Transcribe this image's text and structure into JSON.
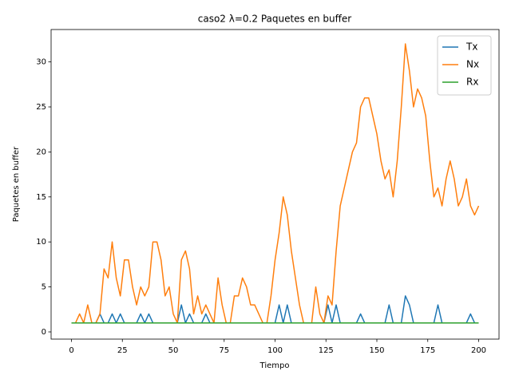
{
  "chart_data": {
    "type": "line",
    "title": "caso2 λ=0.2 Paquetes en buffer",
    "x_label": "Tiempo",
    "y_label": "Paquetes en buffer",
    "x": [
      0,
      2,
      4,
      6,
      8,
      10,
      12,
      14,
      16,
      18,
      20,
      22,
      24,
      26,
      28,
      30,
      32,
      34,
      36,
      38,
      40,
      42,
      44,
      46,
      48,
      50,
      52,
      54,
      56,
      58,
      60,
      62,
      64,
      66,
      68,
      70,
      72,
      74,
      76,
      78,
      80,
      82,
      84,
      86,
      88,
      90,
      92,
      94,
      96,
      98,
      100,
      102,
      104,
      106,
      108,
      110,
      112,
      114,
      116,
      118,
      120,
      122,
      124,
      126,
      128,
      130,
      132,
      134,
      136,
      138,
      140,
      142,
      144,
      146,
      148,
      150,
      152,
      154,
      156,
      158,
      160,
      162,
      164,
      166,
      168,
      170,
      172,
      174,
      176,
      178,
      180,
      182,
      184,
      186,
      188,
      190,
      192,
      194,
      196,
      198,
      200
    ],
    "series": [
      {
        "name": "Tx",
        "color": "#1f77b4",
        "values": [
          1,
          1,
          1,
          1,
          1,
          1,
          1,
          2,
          1,
          1,
          2,
          1,
          2,
          1,
          1,
          1,
          1,
          2,
          1,
          2,
          1,
          1,
          1,
          1,
          1,
          1,
          1,
          3,
          1,
          2,
          1,
          1,
          1,
          2,
          1,
          1,
          1,
          1,
          1,
          1,
          1,
          1,
          1,
          1,
          1,
          1,
          1,
          1,
          1,
          1,
          1,
          3,
          1,
          3,
          1,
          1,
          1,
          1,
          1,
          1,
          1,
          1,
          1,
          3,
          1,
          3,
          1,
          1,
          1,
          1,
          1,
          2,
          1,
          1,
          1,
          1,
          1,
          1,
          3,
          1,
          1,
          1,
          4,
          3,
          1,
          1,
          1,
          1,
          1,
          1,
          3,
          1,
          1,
          1,
          1,
          1,
          1,
          1,
          2,
          1,
          1
        ]
      },
      {
        "name": "Nx",
        "color": "#ff7f0e",
        "values": [
          1,
          1,
          2,
          1,
          3,
          1,
          1,
          2,
          7,
          6,
          10,
          6,
          4,
          8,
          8,
          5,
          3,
          5,
          4,
          5,
          10,
          10,
          8,
          4,
          5,
          2,
          1,
          8,
          9,
          7,
          2,
          4,
          2,
          3,
          2,
          1,
          6,
          3,
          1,
          1,
          4,
          4,
          6,
          5,
          3,
          3,
          2,
          1,
          1,
          4,
          8,
          11,
          15,
          13,
          9,
          6,
          3,
          1,
          1,
          1,
          5,
          2,
          1,
          4,
          3,
          9,
          14,
          16,
          18,
          20,
          21,
          25,
          26,
          26,
          24,
          22,
          19,
          17,
          18,
          15,
          19,
          25,
          32,
          29,
          25,
          27,
          26,
          24,
          19,
          15,
          16,
          14,
          17,
          19,
          17,
          14,
          15,
          17,
          14,
          13,
          14
        ]
      },
      {
        "name": "Rx",
        "color": "#2ca02c",
        "values": [
          1,
          1,
          1,
          1,
          1,
          1,
          1,
          1,
          1,
          1,
          1,
          1,
          1,
          1,
          1,
          1,
          1,
          1,
          1,
          1,
          1,
          1,
          1,
          1,
          1,
          1,
          1,
          1,
          1,
          1,
          1,
          1,
          1,
          1,
          1,
          1,
          1,
          1,
          1,
          1,
          1,
          1,
          1,
          1,
          1,
          1,
          1,
          1,
          1,
          1,
          1,
          1,
          1,
          1,
          1,
          1,
          1,
          1,
          1,
          1,
          1,
          1,
          1,
          1,
          1,
          1,
          1,
          1,
          1,
          1,
          1,
          1,
          1,
          1,
          1,
          1,
          1,
          1,
          1,
          1,
          1,
          1,
          1,
          1,
          1,
          1,
          1,
          1,
          1,
          1,
          1,
          1,
          1,
          1,
          1,
          1,
          1,
          1,
          1,
          1,
          1
        ]
      }
    ],
    "xlim": [
      -10,
      210
    ],
    "ylim": [
      -0.8,
      33.6
    ],
    "xticks": [
      0,
      25,
      50,
      75,
      100,
      125,
      150,
      175,
      200
    ],
    "yticks": [
      0,
      5,
      10,
      15,
      20,
      25,
      30
    ],
    "legend": "upper right"
  }
}
